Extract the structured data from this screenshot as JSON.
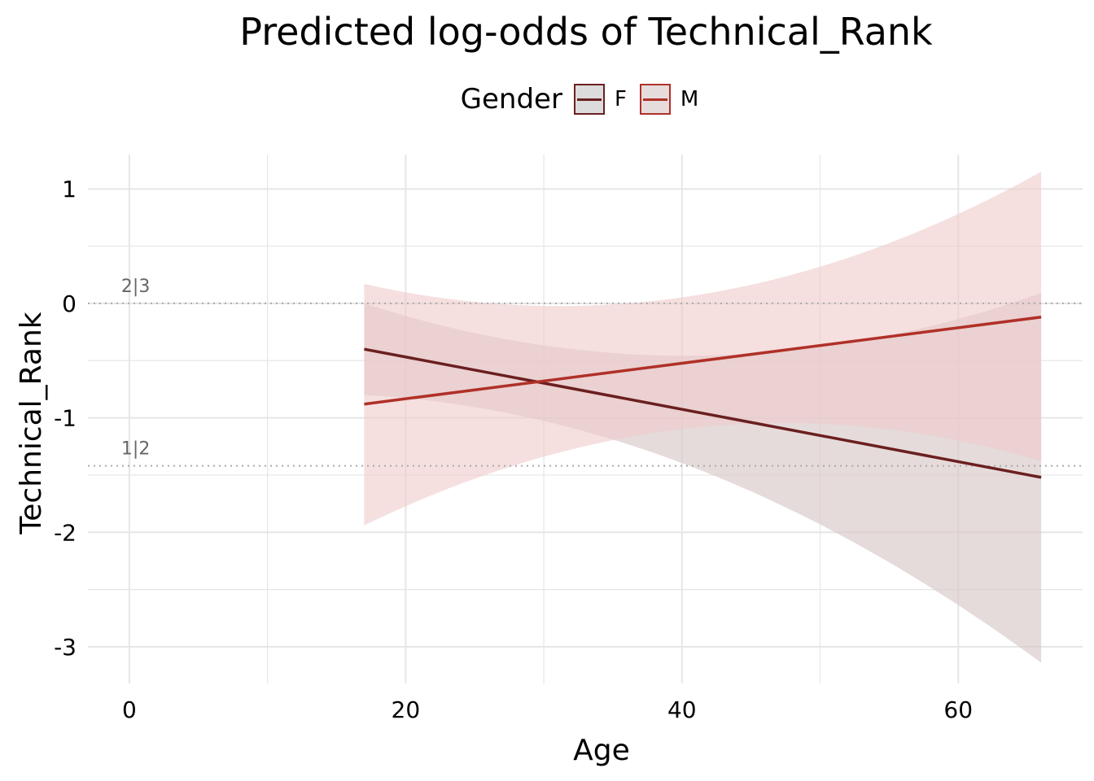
{
  "colors": {
    "F": "#6b1f1f",
    "M": "#b03028",
    "band_F": "#d9c8c8",
    "band_M": "#efc9c9",
    "grid": "#e6e6e6",
    "threshold": "#aaaaaa"
  },
  "chart_data": {
    "type": "line",
    "title": "Predicted log-odds of Technical_Rank",
    "xlabel": "Age",
    "ylabel": "Technical_Rank",
    "xlim": [
      -3,
      69
    ],
    "ylim": [
      -3.32,
      1.3
    ],
    "x_ticks": [
      0,
      20,
      40,
      60
    ],
    "x_tick_labels": [
      "0",
      "20",
      "40",
      "60"
    ],
    "y_ticks": [
      1,
      0,
      -1,
      -2,
      -3
    ],
    "y_tick_labels": [
      "1",
      "0",
      "-1",
      "-2",
      "-3"
    ],
    "grid": true,
    "legend": {
      "title": "Gender",
      "position": "top",
      "entries": [
        "F",
        "M"
      ]
    },
    "series": [
      {
        "name": "F",
        "x": [
          17,
          66
        ],
        "y": [
          -0.4,
          -1.52
        ],
        "ci_lower": [
          -0.8,
          -3.14
        ],
        "ci_upper": [
          0.0,
          0.09
        ]
      },
      {
        "name": "M",
        "x": [
          17,
          66
        ],
        "y": [
          -0.88,
          -0.12
        ],
        "ci_lower": [
          -1.94,
          -1.38
        ],
        "ci_upper": [
          0.17,
          1.15
        ]
      }
    ],
    "thresholds": [
      {
        "label": "2|3",
        "y": 0.0
      },
      {
        "label": "1|2",
        "y": -1.42
      }
    ]
  }
}
